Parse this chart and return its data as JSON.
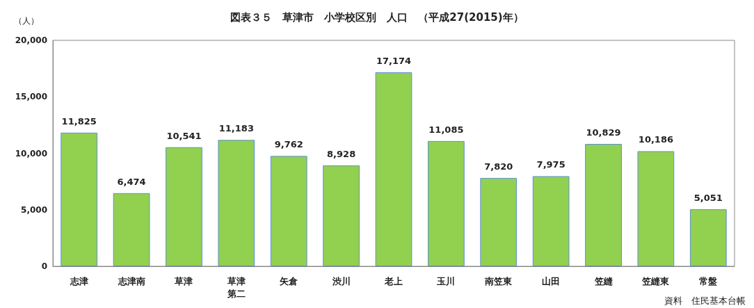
{
  "chart_data": {
    "type": "bar",
    "title": "図表３５　草津市　小学校区別　人口　（平成27(2015)年）",
    "ylabel": "（人）",
    "categories": [
      "志津",
      "志津南",
      "草津",
      "草津第二",
      "矢倉",
      "渋川",
      "老上",
      "玉川",
      "南笠東",
      "山田",
      "笠縫",
      "笠縫東",
      "常盤"
    ],
    "values": [
      11825,
      6474,
      10541,
      11183,
      9762,
      8928,
      17174,
      11085,
      7820,
      7975,
      10829,
      10186,
      5051
    ],
    "value_labels": [
      "11,825",
      "6,474",
      "10,541",
      "11,183",
      "9,762",
      "8,928",
      "17,174",
      "11,085",
      "7,820",
      "7,975",
      "10,829",
      "10,186",
      "5,051"
    ],
    "color": "#92d050",
    "ylim": [
      0,
      20000
    ],
    "yticks": [
      0,
      {
        "value": 5000,
        "label": "5,000"
      },
      {
        "value": 10000,
        "label": "10,000"
      },
      {
        "value": 15000,
        "label": "15,000"
      },
      {
        "value": 20000,
        "label": "20,000"
      }
    ],
    "grid": false,
    "annotations": [
      "資料　住民基本台帳"
    ]
  }
}
